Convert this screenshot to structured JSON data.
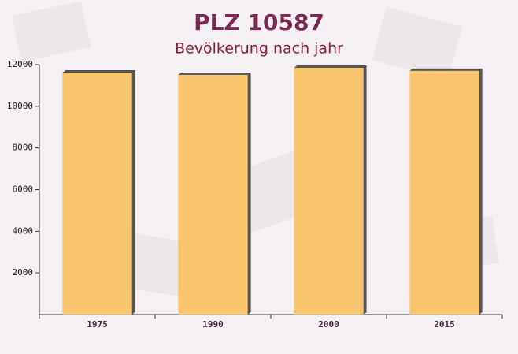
{
  "chart_data": {
    "type": "bar",
    "title": "PLZ 10587",
    "subtitle": "Bevölkerung nach jahr",
    "categories": [
      "1975",
      "1990",
      "2000",
      "2015"
    ],
    "values": [
      11620,
      11510,
      11850,
      11700
    ],
    "color": "#fbc15e",
    "ylim": [
      0,
      12000
    ],
    "yticks": [
      2000,
      4000,
      6000,
      8000,
      10000,
      12000
    ]
  }
}
